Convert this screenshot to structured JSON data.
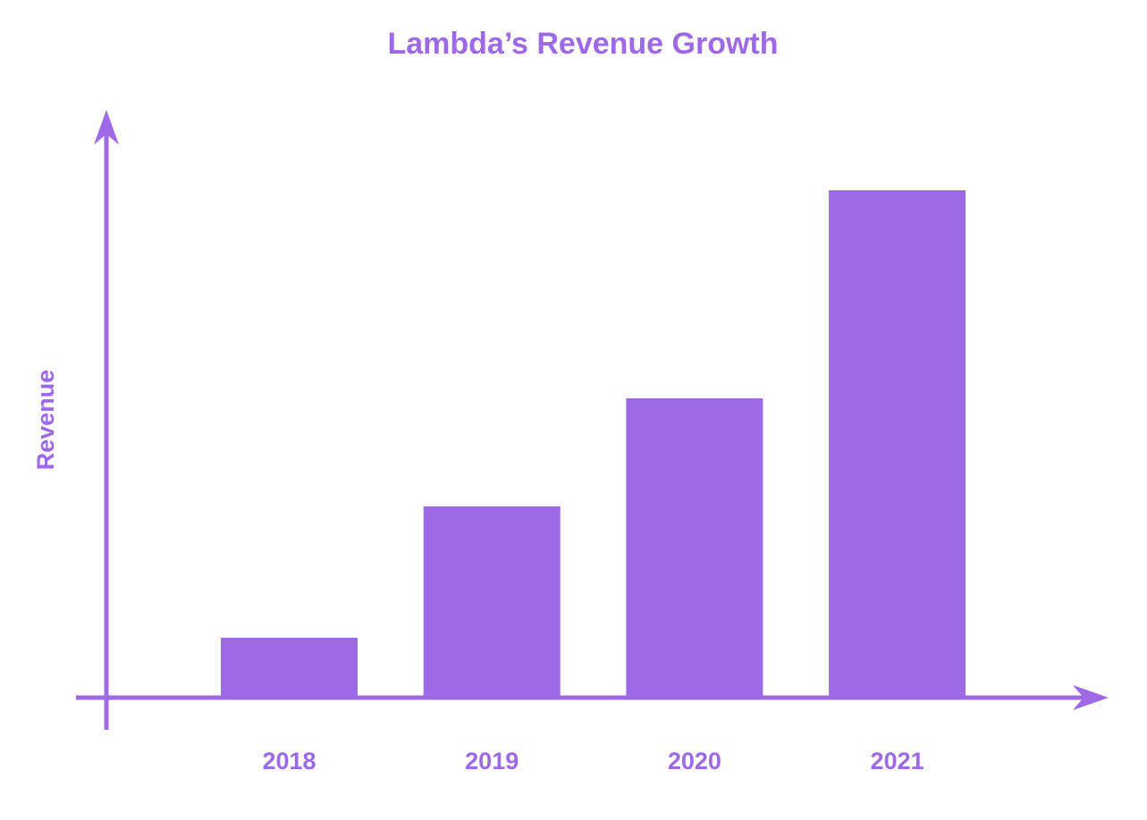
{
  "colors": {
    "accent": "#9d69e6",
    "background": "#ffffff"
  },
  "chart_data": {
    "type": "bar",
    "title": "Lambda’s Revenue Growth",
    "xlabel": "",
    "ylabel": "Revenue",
    "categories": [
      "2018",
      "2019",
      "2020",
      "2021"
    ],
    "values": [
      11.8,
      37.7,
      59.0,
      100
    ],
    "ylim": [
      0,
      115
    ],
    "grid": false,
    "y_tick_labels_shown": false
  }
}
